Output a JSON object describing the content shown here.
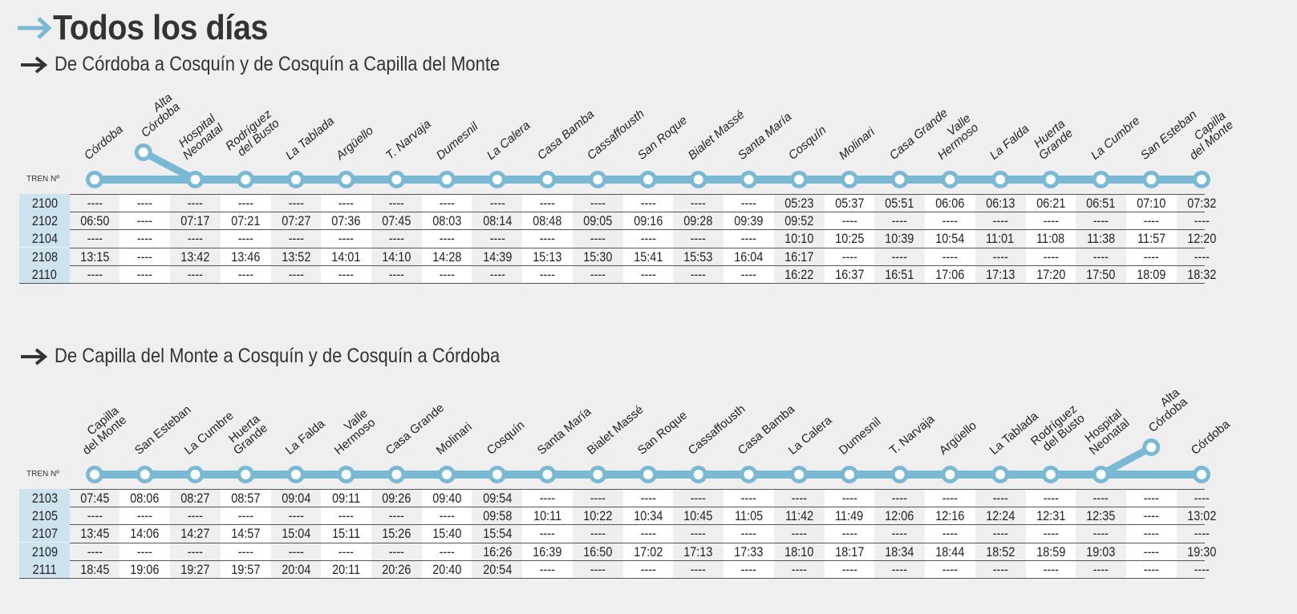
{
  "title": "Todos los días",
  "colors": {
    "accent": "#7ab9d4",
    "row_label_bg": "#cde4ef"
  },
  "tren_label": "TREN Nº",
  "sections": [
    {
      "subtitle": "De Córdoba a Cosquín y de Cosquín a Capilla del Monte",
      "branch_station": 1,
      "stations": [
        "Córdoba",
        "Alta\nCórdoba",
        "Hospital\nNeonatal",
        "Rodríguez\ndel Busto",
        "La Tablada",
        "Argüello",
        "T. Narvaja",
        "Dumesnil",
        "La Calera",
        "Casa Bamba",
        "Cassaffousth",
        "San Roque",
        "Bialet Massé",
        "Santa María",
        "Cosquín",
        "Molinari",
        "Casa Grande",
        "Valle\nHermoso",
        "La Falda",
        "Huerta\nGrande",
        "La Cumbre",
        "San Esteban",
        "Capilla\ndel Monte"
      ],
      "rows": [
        {
          "train": "2100",
          "times": [
            "----",
            "----",
            "----",
            "----",
            "----",
            "----",
            "----",
            "----",
            "----",
            "----",
            "----",
            "----",
            "----",
            "----",
            "05:23",
            "05:37",
            "05:51",
            "06:06",
            "06:13",
            "06:21",
            "06:51",
            "07:10",
            "07:32"
          ]
        },
        {
          "train": "2102",
          "times": [
            "06:50",
            "----",
            "07:17",
            "07:21",
            "07:27",
            "07:36",
            "07:45",
            "08:03",
            "08:14",
            "08:48",
            "09:05",
            "09:16",
            "09:28",
            "09:39",
            "09:52",
            "----",
            "----",
            "----",
            "----",
            "----",
            "----",
            "----",
            "----"
          ]
        },
        {
          "train": "2104",
          "times": [
            "----",
            "----",
            "----",
            "----",
            "----",
            "----",
            "----",
            "----",
            "----",
            "----",
            "----",
            "----",
            "----",
            "----",
            "10:10",
            "10:25",
            "10:39",
            "10:54",
            "11:01",
            "11:08",
            "11:38",
            "11:57",
            "12:20"
          ]
        },
        {
          "train": "2108",
          "times": [
            "13:15",
            "----",
            "13:42",
            "13:46",
            "13:52",
            "14:01",
            "14:10",
            "14:28",
            "14:39",
            "15:13",
            "15:30",
            "15:41",
            "15:53",
            "16:04",
            "16:17",
            "----",
            "----",
            "----",
            "----",
            "----",
            "----",
            "----",
            "----"
          ]
        },
        {
          "train": "2110",
          "times": [
            "----",
            "----",
            "----",
            "----",
            "----",
            "----",
            "----",
            "----",
            "----",
            "----",
            "----",
            "----",
            "----",
            "----",
            "16:22",
            "16:37",
            "16:51",
            "17:06",
            "17:13",
            "17:20",
            "17:50",
            "18:09",
            "18:32"
          ]
        }
      ]
    },
    {
      "subtitle": "De Capilla del Monte a Cosquín y de Cosquín a Córdoba",
      "branch_station": 21,
      "stations": [
        "Capilla\ndel Monte",
        "San Esteban",
        "La Cumbre",
        "Huerta\nGrande",
        "La Falda",
        "Valle\nHermoso",
        "Casa Grande",
        "Molinari",
        "Cosquín",
        "Santa María",
        "Bialet Massé",
        "San Roque",
        "Cassaffousth",
        "Casa Bamba",
        "La Calera",
        "Dumesnil",
        "T. Narvaja",
        "Argüello",
        "La Tablada",
        "Rodríguez\ndel Busto",
        "Hospital\nNeonatal",
        "Alta\nCórdoba",
        "Córdoba"
      ],
      "rows": [
        {
          "train": "2103",
          "times": [
            "07:45",
            "08:06",
            "08:27",
            "08:57",
            "09:04",
            "09:11",
            "09:26",
            "09:40",
            "09:54",
            "----",
            "----",
            "----",
            "----",
            "----",
            "----",
            "----",
            "----",
            "----",
            "----",
            "----",
            "----",
            "----",
            "----"
          ]
        },
        {
          "train": "2105",
          "times": [
            "----",
            "----",
            "----",
            "----",
            "----",
            "----",
            "----",
            "----",
            "09:58",
            "10:11",
            "10:22",
            "10:34",
            "10:45",
            "11:05",
            "11:42",
            "11:49",
            "12:06",
            "12:16",
            "12:24",
            "12:31",
            "12:35",
            "----",
            "13:02"
          ]
        },
        {
          "train": "2107",
          "times": [
            "13:45",
            "14:06",
            "14:27",
            "14:57",
            "15:04",
            "15:11",
            "15:26",
            "15:40",
            "15:54",
            "----",
            "----",
            "----",
            "----",
            "----",
            "----",
            "----",
            "----",
            "----",
            "----",
            "----",
            "----",
            "----",
            "----"
          ]
        },
        {
          "train": "2109",
          "times": [
            "----",
            "----",
            "----",
            "----",
            "----",
            "----",
            "----",
            "----",
            "16:26",
            "16:39",
            "16:50",
            "17:02",
            "17:13",
            "17:33",
            "18:10",
            "18:17",
            "18:34",
            "18:44",
            "18:52",
            "18:59",
            "19:03",
            "----",
            "19:30"
          ]
        },
        {
          "train": "2111",
          "times": [
            "18:45",
            "19:06",
            "19:27",
            "19:57",
            "20:04",
            "20:11",
            "20:26",
            "20:40",
            "20:54",
            "----",
            "----",
            "----",
            "----",
            "----",
            "----",
            "----",
            "----",
            "----",
            "----",
            "----",
            "----",
            "----",
            "----"
          ]
        }
      ]
    }
  ]
}
